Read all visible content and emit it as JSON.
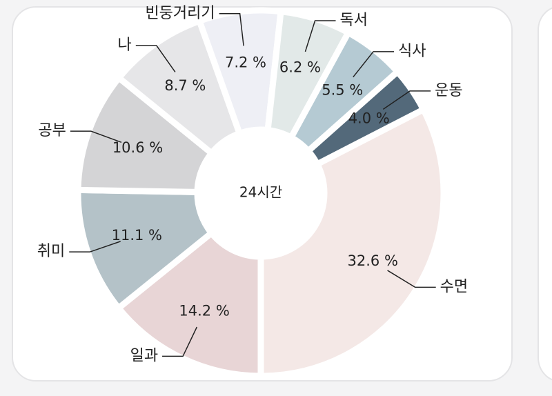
{
  "chart_data": {
    "type": "donut",
    "center_label": "24시간",
    "categories": [
      "수면",
      "일과",
      "취미",
      "공부",
      "나",
      "빈둥거리기",
      "독서",
      "식사",
      "운동"
    ],
    "values": [
      32.6,
      14.2,
      11.1,
      10.6,
      8.7,
      7.2,
      6.2,
      5.5,
      4.0
    ],
    "value_labels": [
      "32.6 %",
      "14.2 %",
      "11.1 %",
      "10.6 %",
      "8.7 %",
      "7.2 %",
      "6.2 %",
      "5.5 %",
      "4.0 %"
    ],
    "colors": [
      "#f4e8e6",
      "#e8d5d6",
      "#b4c2c8",
      "#d4d4d6",
      "#e6e6e8",
      "#eeeff5",
      "#e2e9e8",
      "#b5cad3",
      "#53697a"
    ]
  }
}
